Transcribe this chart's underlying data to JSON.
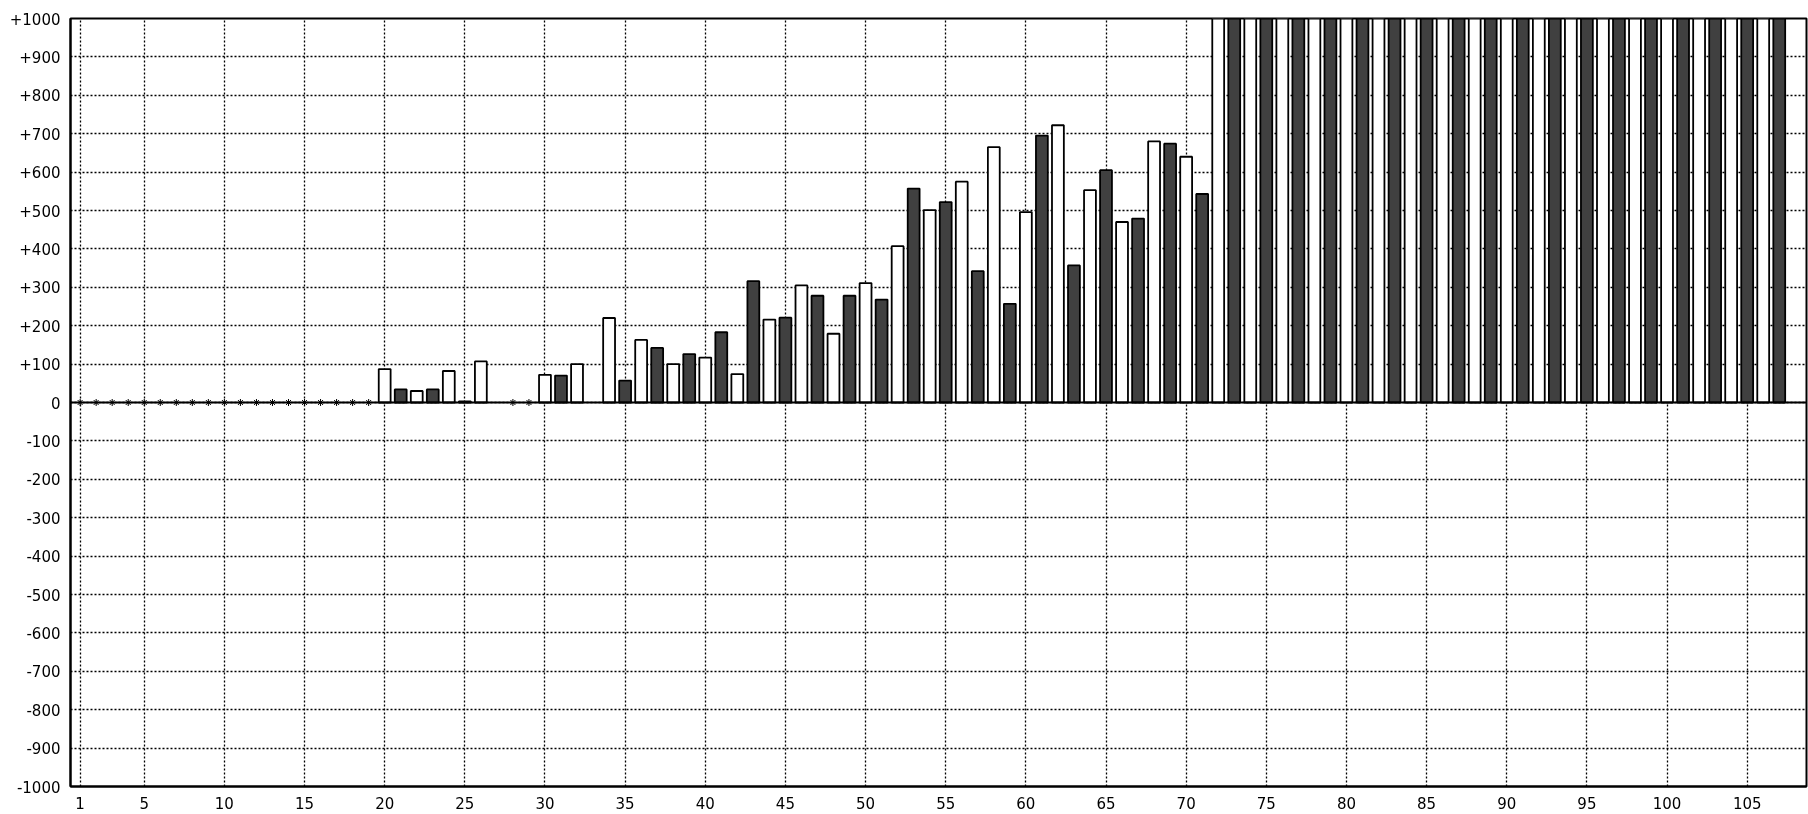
{
  "chart_data": {
    "type": "bar",
    "series": [
      {
        "x": [
          20,
          21,
          22,
          23,
          24,
          25,
          26,
          27,
          28,
          29,
          30,
          31,
          32,
          33,
          34,
          35,
          36,
          37,
          38,
          39,
          40,
          41,
          42,
          43,
          44,
          45,
          46,
          47,
          48,
          49,
          50,
          51,
          52,
          53,
          54,
          55,
          56,
          57,
          58,
          59,
          60,
          61,
          62,
          63,
          64,
          65,
          66,
          67,
          68,
          69,
          70,
          71,
          72,
          73,
          74,
          75,
          76,
          77,
          78,
          79,
          80,
          81,
          82,
          83,
          84,
          85,
          86,
          87,
          88,
          89,
          90,
          91,
          92,
          93,
          94,
          95,
          96,
          97,
          98,
          99,
          100,
          101,
          102,
          103,
          104,
          105,
          106,
          107
        ],
        "values": [
          87,
          34,
          30,
          34,
          82,
          3,
          107,
          null,
          null,
          null,
          72,
          70,
          100,
          null,
          220,
          57,
          163,
          142,
          100,
          126,
          117,
          183,
          74,
          316,
          216,
          221,
          305,
          278,
          179,
          278,
          311,
          268,
          407,
          557,
          501,
          522,
          575,
          342,
          665,
          257,
          496,
          695,
          722,
          357,
          553,
          605,
          470,
          479,
          680,
          674,
          640,
          543,
          1000,
          1000,
          1000,
          1000,
          1000,
          1000,
          1000,
          1000,
          1000,
          1000,
          1000,
          1000,
          1000,
          1000,
          1000,
          1000,
          1000,
          1000,
          1000,
          1000,
          1000,
          1000,
          1000,
          1000,
          1000,
          1000,
          1000,
          1000,
          1000,
          1000,
          1000,
          1000,
          1000,
          1000,
          1000,
          1000
        ],
        "colors": [
          "#ffffff",
          "#404040",
          "#ffffff",
          "#404040",
          "#ffffff",
          "#404040",
          "#ffffff",
          "#404040",
          "#ffffff",
          "#404040",
          "#ffffff",
          "#404040",
          "#ffffff",
          "#404040",
          "#ffffff",
          "#404040",
          "#ffffff",
          "#404040",
          "#ffffff",
          "#404040",
          "#ffffff",
          "#404040",
          "#ffffff",
          "#404040",
          "#ffffff",
          "#404040",
          "#ffffff",
          "#404040",
          "#ffffff",
          "#404040",
          "#ffffff",
          "#404040",
          "#ffffff",
          "#404040",
          "#ffffff",
          "#404040",
          "#ffffff",
          "#404040",
          "#ffffff",
          "#404040",
          "#ffffff",
          "#404040",
          "#ffffff",
          "#404040",
          "#ffffff",
          "#404040",
          "#ffffff",
          "#404040",
          "#ffffff",
          "#404040",
          "#ffffff",
          "#404040",
          "#ffffff",
          "#404040",
          "#ffffff",
          "#404040",
          "#ffffff",
          "#404040",
          "#ffffff",
          "#404040",
          "#ffffff",
          "#404040",
          "#ffffff",
          "#404040",
          "#ffffff",
          "#404040",
          "#ffffff",
          "#404040",
          "#ffffff",
          "#404040",
          "#ffffff",
          "#404040",
          "#ffffff",
          "#404040",
          "#ffffff",
          "#404040",
          "#ffffff",
          "#404040",
          "#ffffff",
          "#404040",
          "#ffffff",
          "#404040",
          "#ffffff",
          "#404040",
          "#ffffff",
          "#404040",
          "#ffffff",
          "#404040"
        ]
      },
      {
        "type": "scatter",
        "marker": "cross",
        "color": "#000000",
        "x": [
          1,
          2,
          3,
          4,
          5,
          6,
          7,
          8,
          9,
          10,
          11,
          12,
          13,
          14,
          15,
          16,
          17,
          18,
          19,
          28,
          29
        ],
        "values": [
          0,
          0,
          0,
          0,
          0,
          0,
          0,
          0,
          0,
          0,
          0,
          0,
          0,
          0,
          0,
          0,
          0,
          0,
          0,
          0,
          0
        ]
      }
    ],
    "xlim": [
      0.4,
      108.7
    ],
    "xticks": [
      1,
      5,
      10,
      15,
      20,
      25,
      30,
      35,
      40,
      45,
      50,
      55,
      60,
      65,
      70,
      75,
      80,
      85,
      90,
      95,
      100,
      105
    ],
    "ylim": [
      -1000,
      1000
    ],
    "yticks": [
      -1000,
      -900,
      -800,
      -700,
      -600,
      -500,
      -400,
      -300,
      -200,
      -100,
      0,
      {
        "value": 100,
        "label": "+100"
      },
      {
        "value": 200,
        "label": "+200"
      },
      {
        "value": 300,
        "label": "+300"
      },
      {
        "value": 400,
        "label": "+400"
      },
      {
        "value": 500,
        "label": "+500"
      },
      {
        "value": 600,
        "label": "+600"
      },
      {
        "value": 700,
        "label": "+700"
      },
      {
        "value": 800,
        "label": "+800"
      },
      {
        "value": 900,
        "label": "+900"
      },
      {
        "value": 1000,
        "label": "+1000"
      }
    ],
    "grid": true
  }
}
